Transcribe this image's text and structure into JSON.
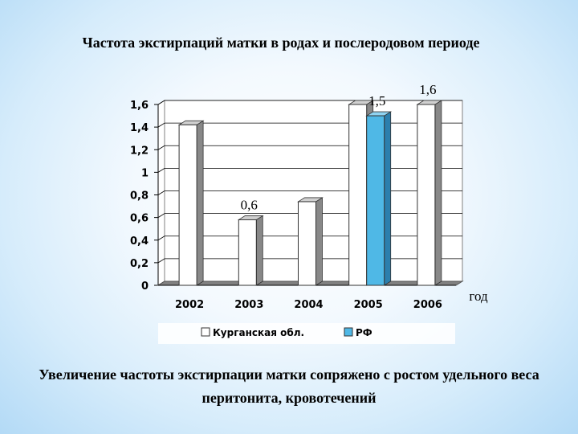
{
  "title": "Частота экстирпаций матки в родах и послеродовом периоде",
  "caption": "Увеличение частоты экстирпации матки сопряжено с ростом удельного веса перитонита, кровотечений",
  "chart_data": {
    "type": "bar",
    "categories": [
      "2002",
      "2003",
      "2004",
      "2005",
      "2006"
    ],
    "series": [
      {
        "name": "Курганская обл.",
        "color": "#ffffff",
        "values": [
          1.42,
          0.58,
          0.74,
          1.6,
          1.6
        ]
      },
      {
        "name": "РФ",
        "color": "#4fb8e6",
        "values": [
          null,
          null,
          null,
          1.5,
          null
        ]
      }
    ],
    "xlabel": "год",
    "ylabel": "",
    "ylim": [
      0,
      1.6
    ],
    "yticks": [
      "0",
      "0,2",
      "0,4",
      "0,6",
      "0,8",
      "1",
      "1,2",
      "1,4",
      "1,6"
    ],
    "annotations": [
      {
        "text": "0,6",
        "category": "2003",
        "series": 0
      },
      {
        "text": "1,5",
        "category": "2005",
        "series": 1
      },
      {
        "text": "1,6",
        "category": "2006",
        "series": 0
      }
    ],
    "legend_position": "bottom",
    "grid": true
  }
}
